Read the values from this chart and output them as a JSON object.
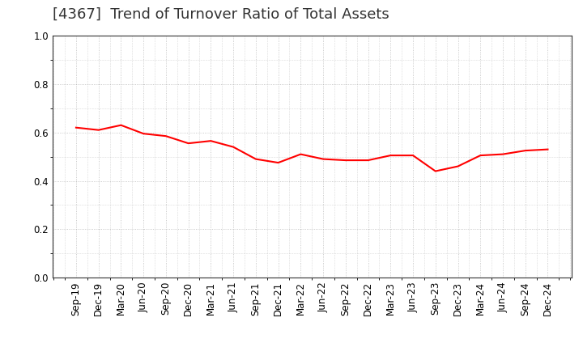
{
  "title": "[4367]  Trend of Turnover Ratio of Total Assets",
  "x_labels": [
    "Sep-19",
    "Dec-19",
    "Mar-20",
    "Jun-20",
    "Sep-20",
    "Dec-20",
    "Mar-21",
    "Jun-21",
    "Sep-21",
    "Dec-21",
    "Mar-22",
    "Jun-22",
    "Sep-22",
    "Dec-22",
    "Mar-23",
    "Jun-23",
    "Sep-23",
    "Dec-23",
    "Mar-24",
    "Jun-24",
    "Sep-24",
    "Dec-24"
  ],
  "y_values": [
    0.62,
    0.61,
    0.63,
    0.595,
    0.585,
    0.555,
    0.565,
    0.54,
    0.49,
    0.475,
    0.51,
    0.49,
    0.485,
    0.485,
    0.505,
    0.505,
    0.44,
    0.46,
    0.505,
    0.51,
    0.525,
    0.53
  ],
  "line_color": "#FF0000",
  "line_width": 1.5,
  "ylim": [
    0.0,
    1.0
  ],
  "yticks": [
    0.0,
    0.2,
    0.4,
    0.6,
    0.8,
    1.0
  ],
  "background_color": "#FFFFFF",
  "grid_color": "#BBBBBB",
  "title_fontsize": 13,
  "tick_fontsize": 8.5,
  "title_color": "#333333"
}
